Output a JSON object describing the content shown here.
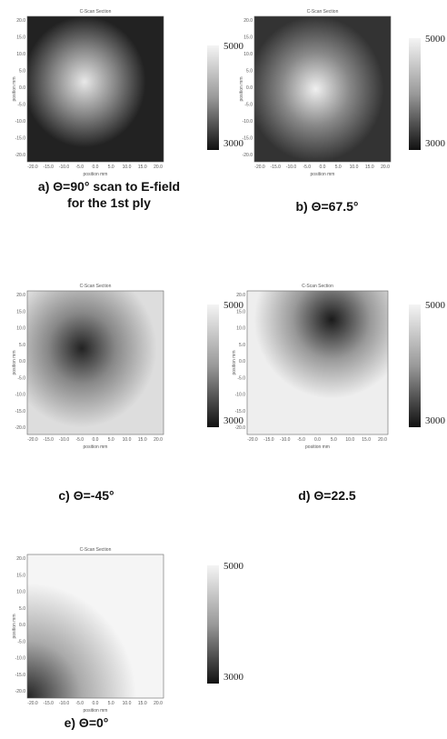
{
  "axes": {
    "title": "C-Scan Section",
    "xlabel": "position mm",
    "ylabel": "position mm",
    "yticks": [
      "20.0",
      "15.0",
      "10.0",
      "5.0",
      "0.0",
      "-5.0",
      "-10.0",
      "-15.0",
      "-20.0"
    ],
    "xticks": [
      "-20.0",
      "-15.0",
      "-10.0",
      "-5.0",
      "0.0",
      "5.0",
      "10.0",
      "15.0",
      "20.0"
    ]
  },
  "panels": [
    {
      "caption": [
        "a) Θ=90°  scan  to E-field",
        "for the 1st ply"
      ],
      "colorbar": [
        "5000",
        "3000"
      ]
    },
    {
      "caption": [
        "b) Θ=67.5°"
      ],
      "colorbar": [
        "5000",
        "3000"
      ]
    },
    {
      "caption": [
        "c) Θ=-45°"
      ],
      "colorbar": [
        "5000",
        "3000"
      ]
    },
    {
      "caption": [
        "d) Θ=22.5"
      ],
      "colorbar": [
        "5000",
        "3000"
      ]
    },
    {
      "caption": [
        "e) Θ=0°"
      ],
      "colorbar": [
        "5000",
        "3000"
      ]
    }
  ]
}
